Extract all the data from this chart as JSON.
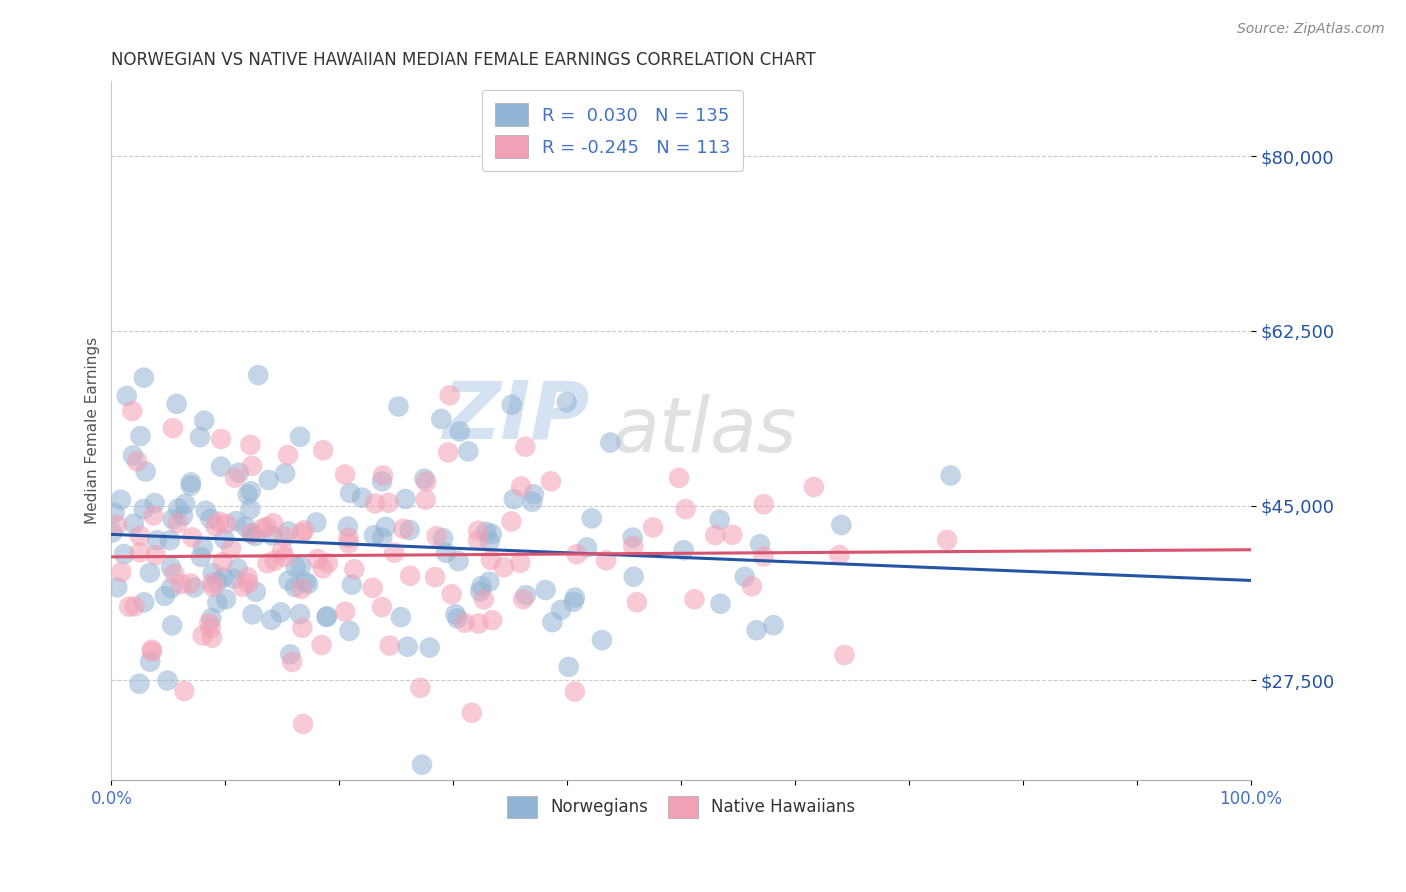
{
  "title": "NORWEGIAN VS NATIVE HAWAIIAN MEDIAN FEMALE EARNINGS CORRELATION CHART",
  "source_text": "Source: ZipAtlas.com",
  "ylabel": "Median Female Earnings",
  "xlim": [
    0.0,
    1.0
  ],
  "ylim": [
    17500,
    87500
  ],
  "yticks": [
    27500,
    45000,
    62500,
    80000
  ],
  "ytick_labels": [
    "$27,500",
    "$45,000",
    "$62,500",
    "$80,000"
  ],
  "xtick_positions": [
    0.0,
    0.1,
    0.2,
    0.3,
    0.4,
    0.5,
    0.6,
    0.7,
    0.8,
    0.9,
    1.0
  ],
  "xtick_labels_sparse": {
    "0": "0.0%",
    "10": "100.0%"
  },
  "norwegian_color": "#92b4d4",
  "native_hawaiian_color": "#f2a0b5",
  "norwegian_line_color": "#2455a4",
  "native_hawaiian_line_color": "#d9536e",
  "watermark_zip": "ZIP",
  "watermark_atlas": "atlas",
  "norwegian_R": 0.03,
  "norwegian_N": 135,
  "native_hawaiian_R": -0.245,
  "native_hawaiian_N": 113,
  "background_color": "#ffffff",
  "grid_color": "#cccccc",
  "title_color": "#333333",
  "axis_label_color": "#555555",
  "legend_text_color": "#4472c4",
  "scatter_alpha": 0.55,
  "scatter_size": 220,
  "norw_line_intercept": 40500,
  "norw_line_slope": 2500,
  "nhaw_line_intercept": 41500,
  "nhaw_line_slope": -5000
}
